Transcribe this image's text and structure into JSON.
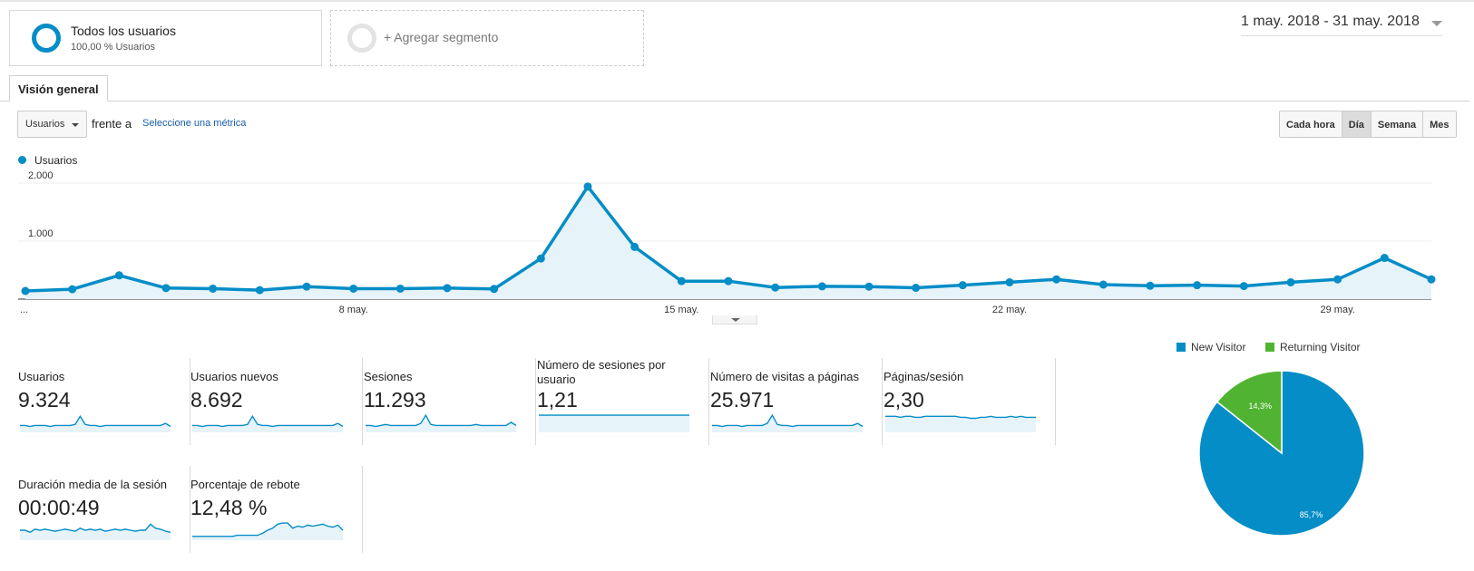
{
  "segments": {
    "active": {
      "title": "Todos los usuarios",
      "subtitle": "100,00 % Usuarios"
    },
    "add_label": "+ Agregar segmento"
  },
  "date_range": "1 may. 2018 - 31 may. 2018",
  "tabs": [
    {
      "label": "Visión general",
      "active": true
    }
  ],
  "controls": {
    "metric_select": "Usuarios",
    "vs_text": "frente a",
    "select_metric_link": "Seleccione una métrica",
    "granularity": [
      {
        "label": "Cada hora",
        "active": false
      },
      {
        "label": "Día",
        "active": true
      },
      {
        "label": "Semana",
        "active": false
      },
      {
        "label": "Mes",
        "active": false
      }
    ]
  },
  "chart_legend": "Usuarios",
  "colors": {
    "primary": "#058dc7",
    "secondary": "#50b432",
    "area": "#e6f3f9"
  },
  "chart_data": [
    {
      "type": "area",
      "series": [
        {
          "name": "Usuarios",
          "values": [
            140,
            170,
            410,
            190,
            180,
            155,
            215,
            180,
            180,
            190,
            175,
            700,
            1940,
            900,
            310,
            310,
            200,
            220,
            215,
            195,
            240,
            290,
            340,
            250,
            230,
            240,
            225,
            290,
            340,
            710,
            340
          ]
        }
      ],
      "x": [
        "1 may.",
        "2 may.",
        "3 may.",
        "4 may.",
        "5 may.",
        "6 may.",
        "7 may.",
        "8 may.",
        "9 may.",
        "10 may.",
        "11 may.",
        "12 may.",
        "13 may.",
        "14 may.",
        "15 may.",
        "16 may.",
        "17 may.",
        "18 may.",
        "19 may.",
        "20 may.",
        "21 may.",
        "22 may.",
        "23 may.",
        "24 may.",
        "25 may.",
        "26 may.",
        "27 may.",
        "28 may.",
        "29 may.",
        "30 may.",
        "31 may."
      ],
      "x_tick_labels": [
        "...",
        "8 may.",
        "15 may.",
        "22 may.",
        "29 may."
      ],
      "y_tick_labels": [
        "1.000",
        "2.000"
      ],
      "y_ticks": [
        1000,
        2000
      ],
      "ylim": [
        0,
        2000
      ]
    },
    {
      "type": "pie",
      "categories": [
        "New Visitor",
        "Returning Visitor"
      ],
      "values": [
        85.7,
        14.3
      ],
      "labels": [
        "85,7%",
        "14,3%"
      ],
      "colors": [
        "#058dc7",
        "#50b432"
      ]
    }
  ],
  "scorecards": [
    {
      "label": "Usuarios",
      "value": "9.324",
      "spark": [
        5,
        5,
        4,
        5,
        5,
        5,
        4,
        5,
        5,
        5,
        5,
        6,
        14,
        6,
        5,
        5,
        4,
        5,
        5,
        5,
        5,
        5,
        5,
        5,
        5,
        5,
        5,
        5,
        5,
        7,
        4
      ]
    },
    {
      "label": "Usuarios nuevos",
      "value": "8.692",
      "spark": [
        5,
        5,
        4,
        5,
        5,
        5,
        4,
        5,
        5,
        5,
        5,
        6,
        14,
        6,
        5,
        5,
        4,
        5,
        5,
        5,
        5,
        5,
        5,
        5,
        5,
        5,
        5,
        5,
        5,
        7,
        4
      ]
    },
    {
      "label": "Sesiones",
      "value": "11.293",
      "spark": [
        5,
        5,
        4,
        5,
        6,
        5,
        5,
        5,
        5,
        5,
        5,
        7,
        15,
        6,
        5,
        5,
        5,
        5,
        5,
        5,
        5,
        5,
        6,
        5,
        5,
        5,
        5,
        5,
        5,
        8,
        5
      ]
    },
    {
      "label": "Número de sesiones por usuario",
      "value": "1,21",
      "spark": [
        15,
        15,
        15,
        15,
        15,
        15,
        15,
        15,
        15,
        15,
        15,
        15,
        15,
        15,
        15,
        15,
        15,
        15,
        15,
        15,
        15,
        15,
        15,
        15,
        15,
        15,
        15,
        15,
        15,
        15,
        15
      ]
    },
    {
      "label": "Número de visitas a páginas",
      "value": "25.971",
      "spark": [
        5,
        5,
        4,
        5,
        5,
        5,
        4,
        5,
        5,
        5,
        5,
        7,
        15,
        6,
        5,
        5,
        4,
        5,
        5,
        5,
        5,
        5,
        5,
        5,
        5,
        5,
        5,
        5,
        5,
        7,
        4
      ]
    },
    {
      "label": "Páginas/sesión",
      "value": "2,30",
      "spark": [
        14,
        14,
        14,
        13,
        14,
        14,
        13,
        13,
        14,
        14,
        14,
        14,
        14,
        14,
        14,
        13,
        13,
        12,
        12,
        13,
        13,
        14,
        13,
        13,
        13,
        14,
        13,
        14,
        13,
        13,
        13
      ]
    },
    {
      "label": "Duración media de la sesión",
      "value": "00:00:49",
      "spark": [
        8,
        8,
        6,
        9,
        8,
        9,
        8,
        7,
        8,
        9,
        8,
        7,
        10,
        8,
        9,
        8,
        9,
        7,
        8,
        9,
        8,
        9,
        8,
        7,
        8,
        8,
        14,
        10,
        9,
        7,
        6
      ]
    },
    {
      "label": "Porcentaje de rebote",
      "value": "12,48 %",
      "spark": [
        2,
        2,
        2,
        2,
        2,
        2,
        2,
        2,
        2,
        3,
        3,
        3,
        3,
        3,
        5,
        8,
        10,
        14,
        15,
        15,
        10,
        12,
        11,
        13,
        12,
        13,
        14,
        12,
        11,
        13,
        8
      ]
    }
  ]
}
